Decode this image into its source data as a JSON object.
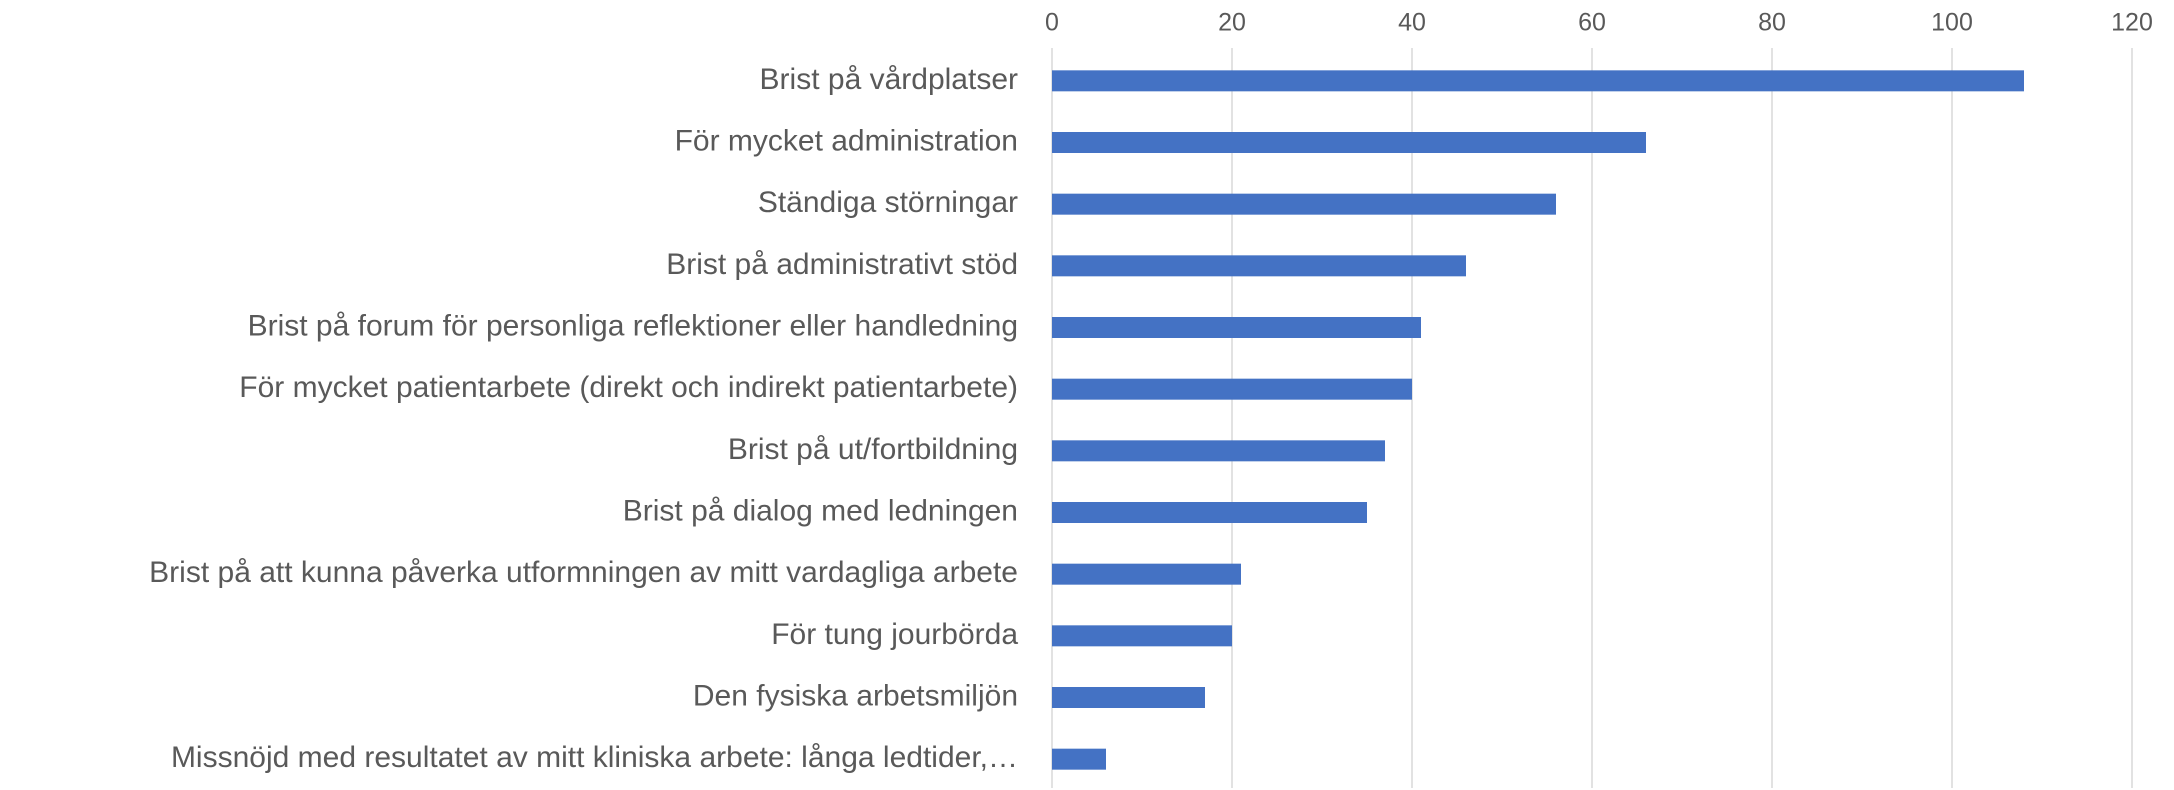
{
  "chart_data": {
    "type": "bar",
    "orientation": "horizontal",
    "categories": [
      "Brist på vårdplatser",
      "För mycket administration",
      "Ständiga störningar",
      "Brist på administrativt stöd",
      "Brist på forum för personliga reflektioner eller handledning",
      "För mycket patientarbete (direkt och indirekt patientarbete)",
      "Brist på ut/fortbildning",
      "Brist på dialog med ledningen",
      "Brist på att kunna påverka utformningen av mitt vardagliga arbete",
      "För tung jourbörda",
      "Den fysiska arbetsmiljön",
      "Missnöjd med resultatet av mitt kliniska arbete: långa ledtider,…"
    ],
    "values": [
      108,
      66,
      56,
      46,
      41,
      40,
      37,
      35,
      21,
      20,
      17,
      6
    ],
    "color": "#4472c4",
    "xlim": [
      0,
      120
    ],
    "xticks": [
      0,
      20,
      40,
      60,
      80,
      100,
      120
    ],
    "grid": true
  }
}
